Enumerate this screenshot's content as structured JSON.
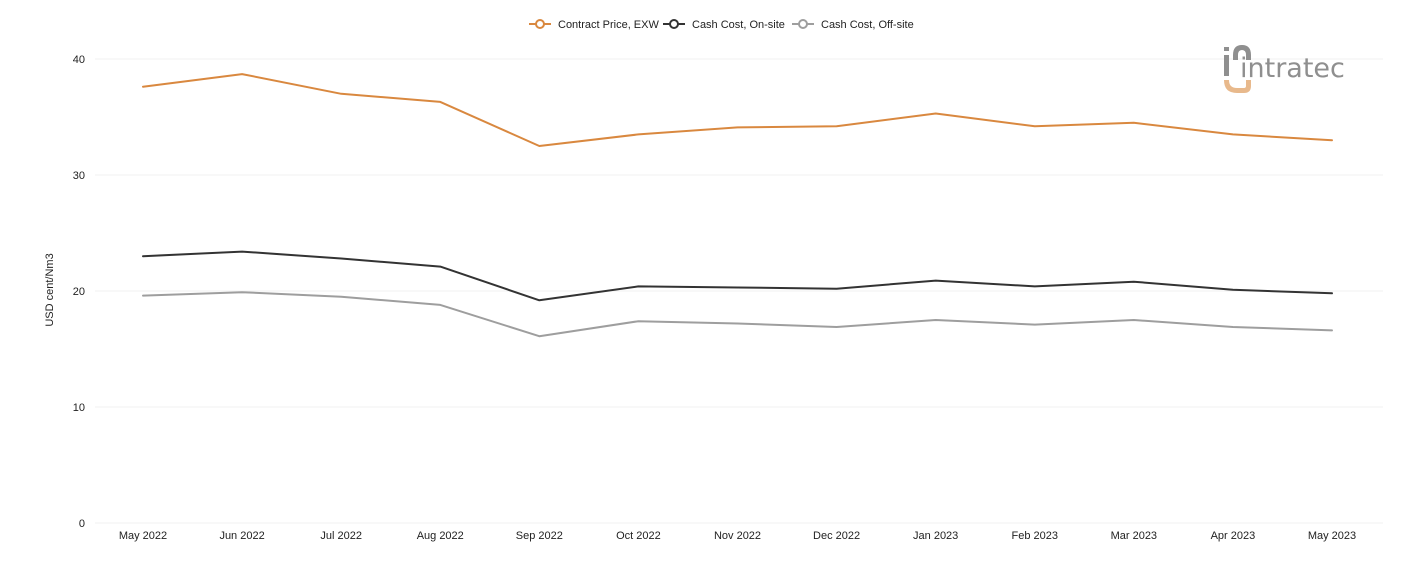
{
  "chart_data": {
    "type": "line",
    "x": [
      "May 2022",
      "Jun 2022",
      "Jul 2022",
      "Aug 2022",
      "Sep 2022",
      "Oct 2022",
      "Nov 2022",
      "Dec 2022",
      "Jan 2023",
      "Feb 2023",
      "Mar 2023",
      "Apr 2023",
      "May 2023"
    ],
    "series": [
      {
        "name": "Contract Price, EXW",
        "color": "#d9883f",
        "values": [
          37.6,
          38.7,
          37.0,
          36.3,
          32.5,
          33.5,
          34.1,
          34.2,
          35.3,
          34.2,
          34.5,
          33.5,
          33.0
        ]
      },
      {
        "name": "Cash Cost, On-site",
        "color": "#333333",
        "values": [
          23.0,
          23.4,
          22.8,
          22.1,
          19.2,
          20.4,
          20.3,
          20.2,
          20.9,
          20.4,
          20.8,
          20.1,
          19.8
        ]
      },
      {
        "name": "Cash Cost, Off-site",
        "color": "#9e9e9e",
        "values": [
          19.6,
          19.9,
          19.5,
          18.8,
          16.1,
          17.4,
          17.2,
          16.9,
          17.5,
          17.1,
          17.5,
          16.9,
          16.6
        ]
      }
    ],
    "ylabel": "USD cent/Nm3",
    "xlabel": "",
    "title": "",
    "ylim": [
      0,
      40
    ],
    "yticks": [
      "0",
      "10",
      "20",
      "30",
      "40"
    ],
    "grid": true,
    "legend_position": "top-center"
  },
  "branding": {
    "logo_text": "intratec",
    "logo_colors": {
      "gray": "#8f8f8f",
      "accent": "#e8b98c"
    }
  }
}
